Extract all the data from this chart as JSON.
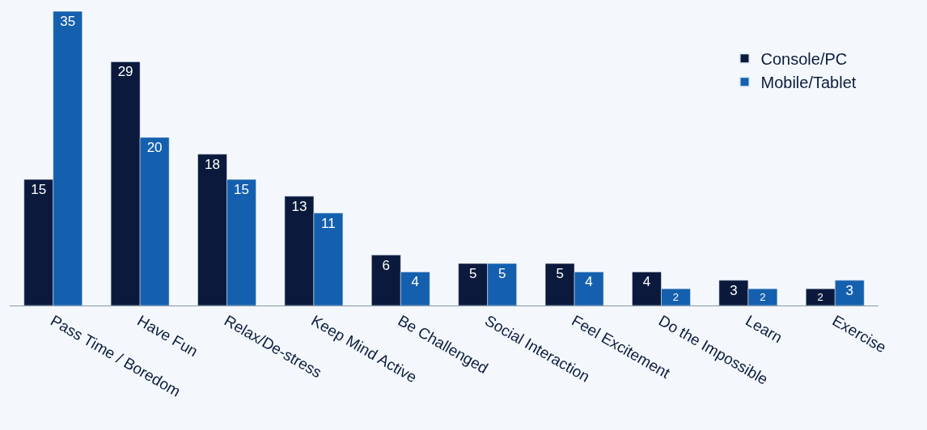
{
  "chart_data": {
    "type": "bar",
    "categories": [
      "Pass Time / Boredom",
      "Have Fun",
      "Relax/De-stress",
      "Keep Mind Active",
      "Be Challenged",
      "Social Interaction",
      "Feel Excitement",
      "Do the Impossible",
      "Learn",
      "Exercise"
    ],
    "series": [
      {
        "name": "Console/PC",
        "color": "#0b1a3c",
        "values": [
          15,
          29,
          18,
          13,
          6,
          5,
          5,
          4,
          3,
          2
        ]
      },
      {
        "name": "Mobile/Tablet",
        "color": "#1560ae",
        "values": [
          35,
          20,
          15,
          11,
          4,
          5,
          4,
          2,
          2,
          3
        ]
      }
    ],
    "ylim": [
      0,
      35
    ],
    "data_labels": true,
    "legend": "right",
    "grid": false
  }
}
